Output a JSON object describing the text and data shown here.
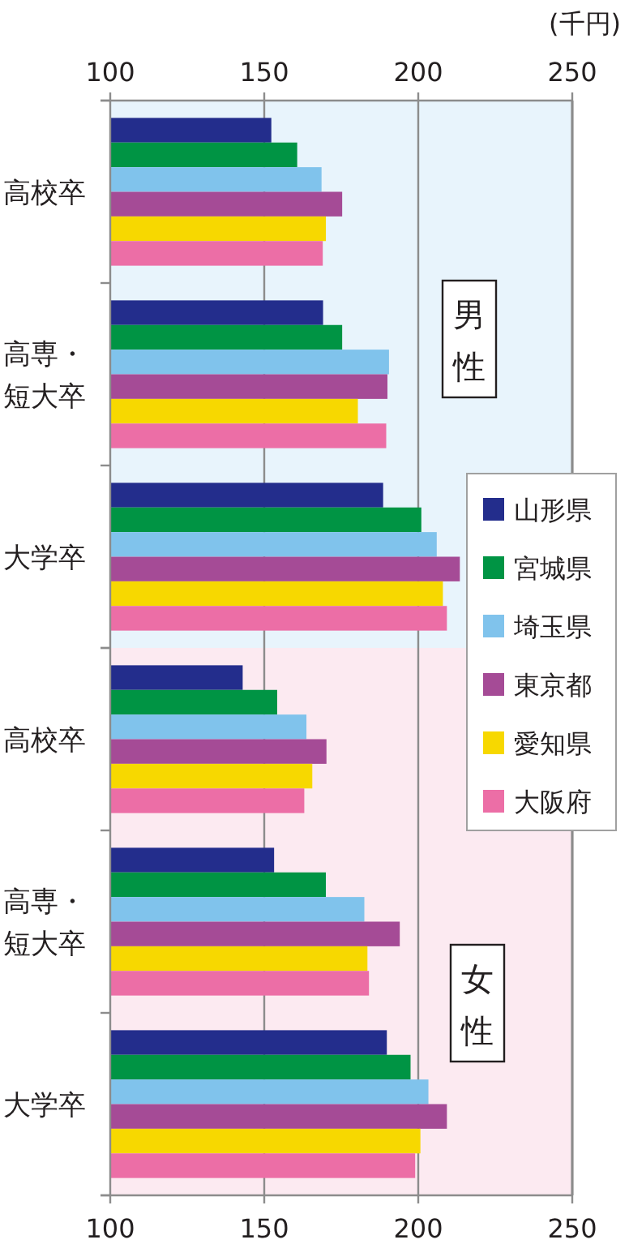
{
  "chart_data": [
    {
      "type": "bar",
      "orientation": "horizontal",
      "xlabel": "(千円)",
      "annotations": [
        "男性"
      ],
      "categories": [
        "高校卒",
        "高専・短大卒",
        "大学卒"
      ],
      "xlim": [
        100,
        250
      ],
      "xticks": [
        100,
        150,
        200,
        250
      ],
      "grid": "x",
      "legend": "right",
      "series": [
        {
          "name": "山形県",
          "color": "#232d8c",
          "values": [
            152.3,
            169.1,
            188.6
          ]
        },
        {
          "name": "宮城県",
          "color": "#009444",
          "values": [
            160.7,
            175.3,
            201
          ]
        },
        {
          "name": "埼玉県",
          "color": "#80c3ec",
          "values": [
            168.6,
            190.5,
            206
          ]
        },
        {
          "name": "東京都",
          "color": "#a54b96",
          "values": [
            175.3,
            190,
            213.5
          ]
        },
        {
          "name": "愛知県",
          "color": "#f7d800",
          "values": [
            170,
            180.4,
            208
          ]
        },
        {
          "name": "大阪府",
          "color": "#ec6ea6",
          "values": [
            169,
            189.6,
            209.3
          ]
        }
      ]
    },
    {
      "type": "bar",
      "orientation": "horizontal",
      "annotations": [
        "女性"
      ],
      "categories": [
        "高校卒",
        "高専・短大卒",
        "大学卒"
      ],
      "xlim": [
        100,
        250
      ],
      "xticks": [
        100,
        150,
        200,
        250
      ],
      "grid": "x",
      "series": [
        {
          "color": "#232d8c",
          "values": [
            143,
            153.2,
            189.8
          ]
        },
        {
          "color": "#009444",
          "values": [
            154.2,
            170,
            197.5
          ]
        },
        {
          "color": "#80c3ec",
          "values": [
            163.7,
            182.5,
            203.3
          ]
        },
        {
          "color": "#a54b96",
          "values": [
            170.2,
            194,
            209.3
          ]
        },
        {
          "color": "#f7d800",
          "values": [
            165.6,
            183.5,
            200.7
          ]
        },
        {
          "color": "#ec6ea6",
          "values": [
            163,
            184,
            199
          ]
        }
      ]
    }
  ]
}
